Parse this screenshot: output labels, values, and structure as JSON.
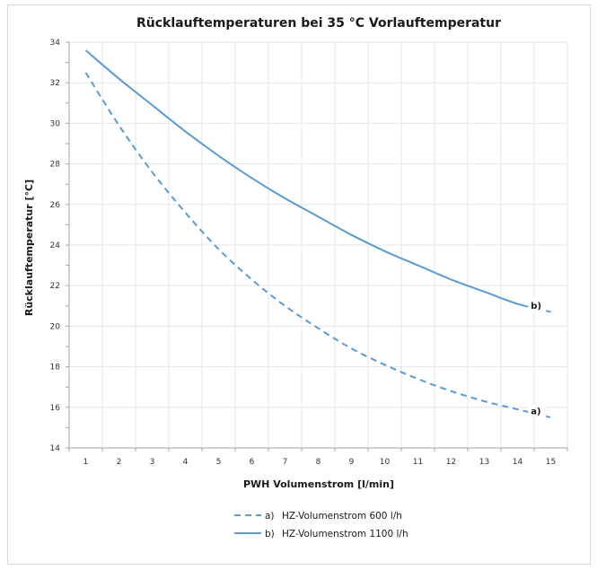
{
  "chart_data": {
    "type": "line",
    "title": "Rücklauftemperaturen bei 35 °C Vorlauftemperatur",
    "xlabel": "PWH Volumenstrom [l/min]",
    "ylabel": "Rücklauftemperatur [°C]",
    "xlim": [
      0.5,
      15.5
    ],
    "ylim": [
      14,
      34
    ],
    "xticks": [
      1,
      2,
      3,
      4,
      5,
      6,
      7,
      8,
      9,
      10,
      11,
      12,
      13,
      14,
      15
    ],
    "yticks": [
      14,
      16,
      18,
      20,
      22,
      24,
      26,
      28,
      30,
      32,
      34
    ],
    "grid": true,
    "legend_position": "bottom",
    "series": [
      {
        "name": "HZ-Volumenstrom 600 l/h",
        "marker": "a)",
        "label": "a)",
        "style": "dashed",
        "color": "#5b9bd5",
        "x": [
          1,
          2,
          3,
          4,
          5,
          6,
          7,
          8,
          9,
          10,
          11,
          12,
          13,
          14,
          15
        ],
        "y": [
          32.5,
          29.9,
          27.6,
          25.6,
          23.8,
          22.3,
          21.0,
          19.9,
          18.9,
          18.1,
          17.4,
          16.8,
          16.3,
          15.9,
          15.5
        ]
      },
      {
        "name": "HZ-Volumenstrom 1100 l/h",
        "marker": "b)",
        "label": "b)",
        "style": "solid",
        "color": "#5b9bd5",
        "x": [
          1,
          2,
          3,
          4,
          5,
          6,
          7,
          8,
          9,
          10,
          11,
          12,
          13,
          14,
          15
        ],
        "y": [
          33.6,
          32.2,
          30.9,
          29.6,
          28.4,
          27.3,
          26.3,
          25.4,
          24.5,
          23.7,
          23.0,
          22.3,
          21.7,
          21.1,
          20.7
        ]
      }
    ]
  }
}
